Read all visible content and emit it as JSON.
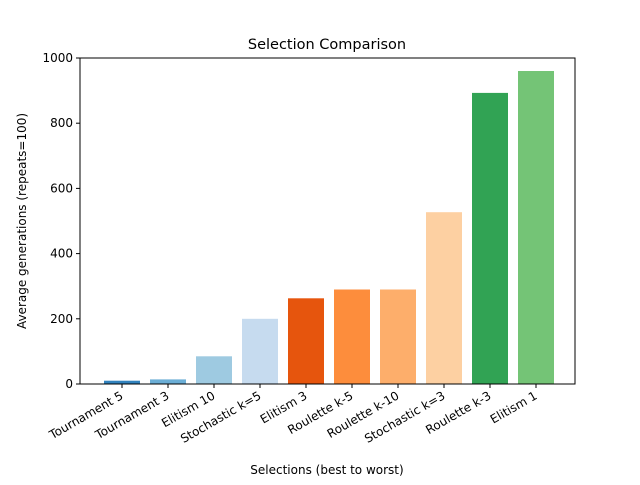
{
  "chart_data": {
    "type": "bar",
    "title": "Selection Comparison",
    "xlabel": "Selections (best to worst)",
    "ylabel": "Average generations (repeats=100)",
    "ylim": [
      0,
      1000
    ],
    "yticks": [
      0,
      200,
      400,
      600,
      800,
      1000
    ],
    "categories": [
      "Tournament 5",
      "Tournament 3",
      "Elitism  10",
      "Stochastic k=5",
      "Elitism  3",
      "Roulette  k-5",
      "Roulette  k-10",
      "Stochastic k=3",
      "Roulette  k-3",
      "Elitism  1"
    ],
    "values": [
      10,
      14,
      85,
      200,
      263,
      290,
      290,
      527,
      893,
      960
    ],
    "colors": [
      "#3182bd",
      "#6baed6",
      "#9ecae1",
      "#c6dbef",
      "#e6550d",
      "#fd8d3c",
      "#fdae6b",
      "#fdd0a2",
      "#31a354",
      "#74c476"
    ],
    "grid": false,
    "legend": "none"
  }
}
